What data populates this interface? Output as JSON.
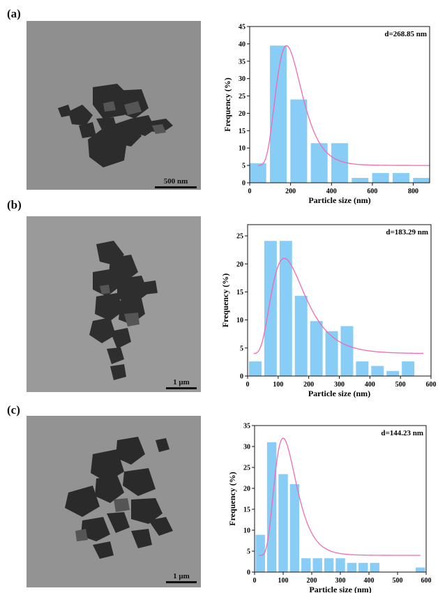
{
  "panels": [
    {
      "label": "(a)",
      "scale_label": "500 nm"
    },
    {
      "label": "(b)",
      "scale_label": "1 μm"
    },
    {
      "label": "(c)",
      "scale_label": "1 μm"
    }
  ],
  "colors": {
    "bar": "#87cdf5",
    "fit": "#f06ab4",
    "axis": "#111111"
  },
  "chart_data": [
    {
      "type": "bar",
      "annotation": "d=268.85 nm",
      "xlabel": "Particle size (nm)",
      "ylabel": "Frequency (%)",
      "xlim": [
        0,
        880
      ],
      "ylim": [
        0,
        45
      ],
      "xticks": [
        0,
        200,
        400,
        600,
        800
      ],
      "yticks": [
        0,
        5,
        10,
        15,
        20,
        25,
        30,
        35,
        40,
        45
      ],
      "bin_width": 100,
      "bin_centers": [
        40,
        140,
        240,
        340,
        440,
        540,
        640,
        740,
        840
      ],
      "values": [
        5.6,
        39.5,
        24.0,
        11.4,
        11.4,
        1.4,
        2.8,
        2.8,
        1.4
      ],
      "fit": {
        "type": "lognormal",
        "x0": 180,
        "sigma": 0.35,
        "A": 34.5,
        "y0": 5.0,
        "xrange": [
          40,
          880
        ]
      }
    },
    {
      "type": "bar",
      "annotation": "d=183.29 nm",
      "xlabel": "Particle size (nm)",
      "ylabel": "Frequency (%)",
      "xlim": [
        0,
        600
      ],
      "ylim": [
        0,
        27
      ],
      "xticks": [
        0,
        100,
        200,
        300,
        400,
        500,
        600
      ],
      "yticks": [
        0,
        5,
        10,
        15,
        20,
        25
      ],
      "bin_width": 50,
      "bin_centers": [
        25,
        75,
        125,
        175,
        225,
        275,
        325,
        375,
        425,
        475,
        525
      ],
      "values": [
        2.6,
        24.1,
        24.1,
        14.3,
        9.8,
        8.0,
        8.9,
        2.6,
        1.8,
        0.9,
        2.6
      ],
      "fit": {
        "type": "lognormal",
        "x0": 120,
        "sigma": 0.45,
        "A": 17.0,
        "y0": 4.0,
        "xrange": [
          20,
          575
        ]
      }
    },
    {
      "type": "bar",
      "annotation": "d=144.23 nm",
      "xlabel": "Particle size (nm)",
      "ylabel": "Frequency (%)",
      "xlim": [
        0,
        600
      ],
      "ylim": [
        0,
        35
      ],
      "xticks": [
        0,
        100,
        200,
        300,
        400,
        500,
        600
      ],
      "yticks": [
        0,
        5,
        10,
        15,
        20,
        25,
        30,
        35
      ],
      "bin_width": 40,
      "bin_centers": [
        20,
        60,
        100,
        140,
        180,
        220,
        260,
        300,
        340,
        380,
        420,
        580
      ],
      "values": [
        8.9,
        31.0,
        23.4,
        21.0,
        3.3,
        3.3,
        3.3,
        3.3,
        2.2,
        2.2,
        2.2,
        1.1
      ],
      "fit": {
        "type": "lognormal",
        "x0": 100,
        "sigma": 0.38,
        "A": 28.0,
        "y0": 4.0,
        "xrange": [
          15,
          580
        ]
      }
    }
  ]
}
